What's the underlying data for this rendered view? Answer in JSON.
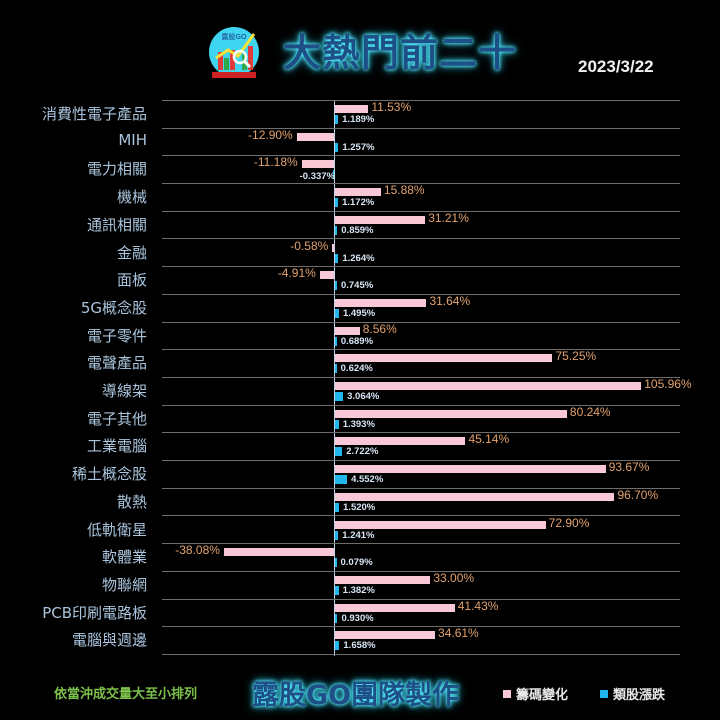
{
  "header": {
    "logo_text": "露股GO",
    "title": "大熱門前二十",
    "date": "2023/3/22"
  },
  "footer": {
    "note": "依當沖成交量大至小排列",
    "brand": "露股GO團隊製作"
  },
  "legend": [
    {
      "label": "籌碼變化",
      "color": "#f8c8d6"
    },
    {
      "label": "類股漲跌",
      "color": "#22b7ec"
    }
  ],
  "chart_data": {
    "type": "bar",
    "orientation": "horizontal",
    "title": "大熱門前二十",
    "subtitle": "2023/3/22",
    "xlabel": "",
    "ylabel": "",
    "grid": true,
    "legend_position": "bottom-right",
    "categories": [
      "消費性電子產品",
      "MIH",
      "電力相關",
      "機械",
      "通訊相關",
      "金融",
      "面板",
      "5G概念股",
      "電子零件",
      "電聲產品",
      "導線架",
      "電子其他",
      "工業電腦",
      "稀土概念股",
      "散熱",
      "低軌衛星",
      "軟體業",
      "物聯網",
      "PCB印刷電路板",
      "電腦與週邊"
    ],
    "series": [
      {
        "name": "籌碼變化",
        "color": "#f8c8d6",
        "values": [
          11.53,
          -12.9,
          -11.18,
          15.88,
          31.21,
          -0.58,
          -4.91,
          31.64,
          8.56,
          75.25,
          105.96,
          80.24,
          45.14,
          93.67,
          96.7,
          72.9,
          -38.08,
          33.0,
          41.43,
          34.61
        ],
        "labels": [
          "11.53%",
          "-12.90%",
          "-11.18%",
          "15.88%",
          "31.21%",
          "-0.58%",
          "-4.91%",
          "31.64%",
          "8.56%",
          "75.25%",
          "105.96%",
          "80.24%",
          "45.14%",
          "93.67%",
          "96.70%",
          "72.90%",
          "-38.08%",
          "33.00%",
          "41.43%",
          "34.61%"
        ]
      },
      {
        "name": "類股漲跌",
        "color": "#22b7ec",
        "values": [
          1.189,
          1.257,
          -0.337,
          1.172,
          0.859,
          1.264,
          0.745,
          1.495,
          0.689,
          0.624,
          3.064,
          1.393,
          2.722,
          4.552,
          1.52,
          1.241,
          0.079,
          1.382,
          0.93,
          1.658
        ],
        "labels": [
          "1.189%",
          "1.257%",
          "-0.337%",
          "1.172%",
          "0.859%",
          "1.264%",
          "0.745%",
          "1.495%",
          "0.689%",
          "0.624%",
          "3.064%",
          "1.393%",
          "2.722%",
          "4.552%",
          "1.520%",
          "1.241%",
          "0.079%",
          "1.382%",
          "0.930%",
          "1.658%"
        ]
      }
    ]
  }
}
